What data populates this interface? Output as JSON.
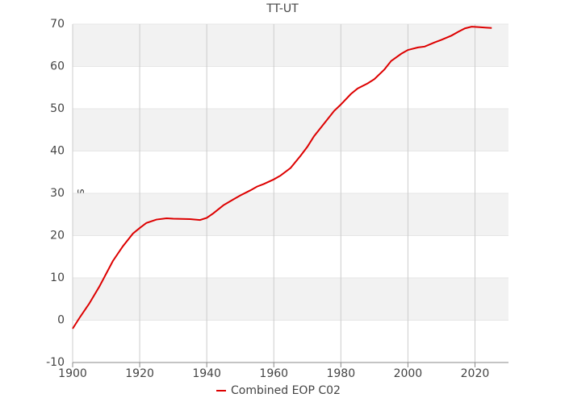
{
  "chart_data": {
    "type": "line",
    "title": "TT-UT",
    "y_label": "s",
    "x": [
      1900,
      1902,
      1905,
      1908,
      1910,
      1912,
      1915,
      1918,
      1920,
      1922,
      1925,
      1928,
      1930,
      1935,
      1938,
      1940,
      1942,
      1945,
      1948,
      1950,
      1953,
      1955,
      1957,
      1960,
      1962,
      1965,
      1968,
      1970,
      1972,
      1975,
      1978,
      1980,
      1983,
      1985,
      1988,
      1990,
      1993,
      1995,
      1998,
      2000,
      2003,
      2005,
      2008,
      2010,
      2013,
      2015,
      2017,
      2019,
      2021,
      2023,
      2025
    ],
    "series": [
      {
        "name": "Combined EOP C02",
        "color": "#dd0000",
        "values": [
          -2.0,
          0.5,
          4,
          8,
          11,
          14,
          17.5,
          20.5,
          21.8,
          23,
          23.8,
          24.1,
          24.0,
          23.9,
          23.7,
          24.2,
          25.3,
          27.2,
          28.6,
          29.5,
          30.7,
          31.6,
          32.2,
          33.3,
          34.2,
          36.0,
          38.9,
          41.0,
          43.5,
          46.5,
          49.5,
          51.0,
          53.5,
          54.8,
          56.0,
          57.0,
          59.3,
          61.3,
          63.0,
          63.9,
          64.5,
          64.7,
          65.7,
          66.3,
          67.3,
          68.2,
          69.0,
          69.4,
          69.3,
          69.2,
          69.1
        ]
      }
    ],
    "xlim": [
      1900,
      2030
    ],
    "xticks": [
      1900,
      1920,
      1940,
      1960,
      1980,
      2000,
      2020
    ],
    "ylim": [
      -10,
      70
    ],
    "yticks": [
      -10,
      0,
      10,
      20,
      30,
      40,
      50,
      60,
      70
    ],
    "grid": true,
    "legend": "bottom"
  }
}
